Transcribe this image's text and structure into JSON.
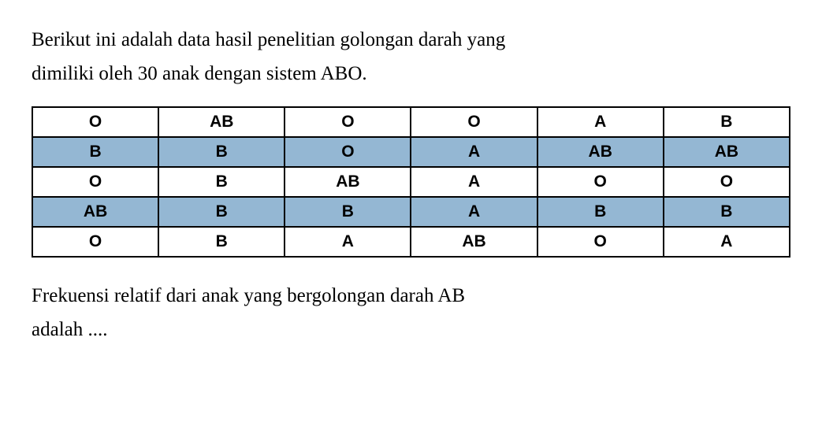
{
  "question": {
    "line1": "Berikut ini adalah data hasil penelitian golongan darah yang",
    "line2": "dimiliki oleh 30 anak dengan sistem ABO."
  },
  "table": {
    "columns": 6,
    "row_colors": [
      "#ffffff",
      "#94b7d3",
      "#ffffff",
      "#94b7d3",
      "#ffffff"
    ],
    "border_color": "#000000",
    "cell_fontsize": 21,
    "cell_fontweight": "bold",
    "rows": [
      [
        "O",
        "AB",
        "O",
        "O",
        "A",
        "B"
      ],
      [
        "B",
        "B",
        "O",
        "A",
        "AB",
        "AB"
      ],
      [
        "O",
        "B",
        "AB",
        "A",
        "O",
        "O"
      ],
      [
        "AB",
        "B",
        "B",
        "A",
        "B",
        "B"
      ],
      [
        "O",
        "B",
        "A",
        "AB",
        "O",
        "A"
      ]
    ]
  },
  "answer": {
    "line1": "Frekuensi relatif dari anak yang bergolongan darah AB",
    "line2": "adalah ...."
  }
}
